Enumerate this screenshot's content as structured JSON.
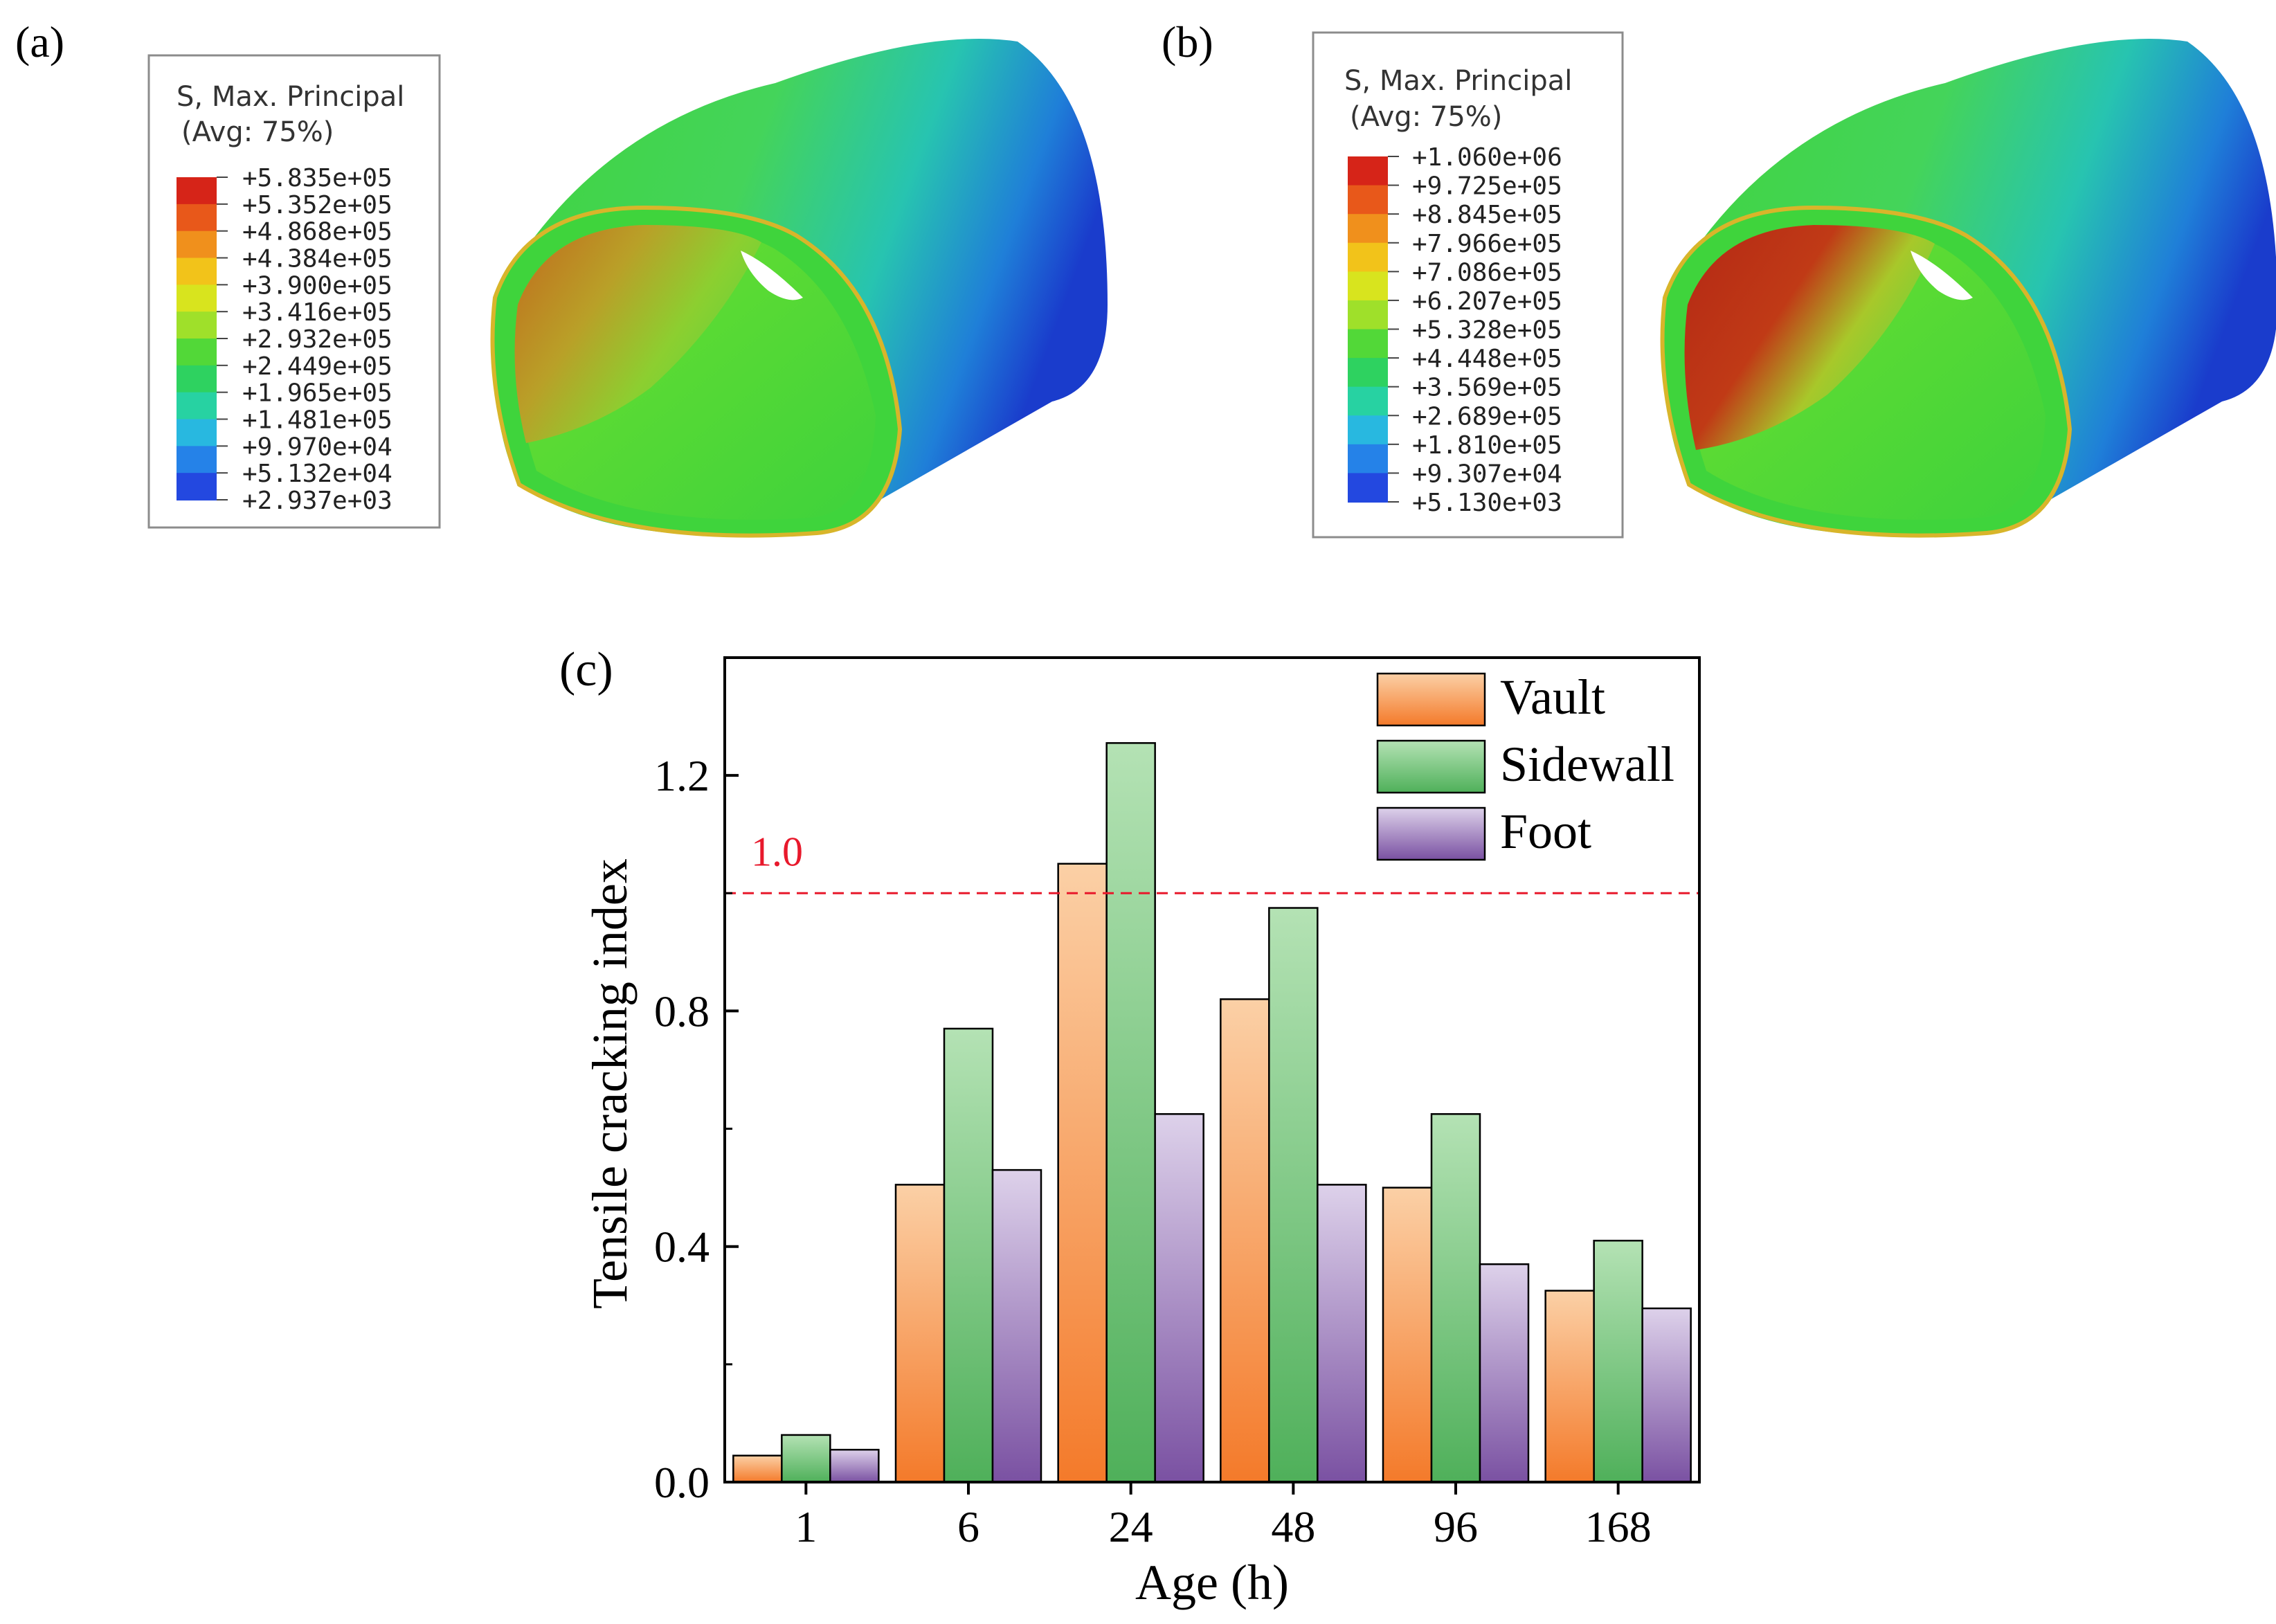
{
  "panels": {
    "a": {
      "label": "(a)",
      "legend_title_1": "S, Max. Principal",
      "legend_title_2": "(Avg: 75%)",
      "contour_values": [
        "+5.835e+05",
        "+5.352e+05",
        "+4.868e+05",
        "+4.384e+05",
        "+3.900e+05",
        "+3.416e+05",
        "+2.932e+05",
        "+2.449e+05",
        "+1.965e+05",
        "+1.481e+05",
        "+9.970e+04",
        "+5.132e+04",
        "+2.937e+03"
      ]
    },
    "b": {
      "label": "(b)",
      "legend_title_1": "S, Max. Principal",
      "legend_title_2": "(Avg: 75%)",
      "contour_values": [
        "+1.060e+06",
        "+9.725e+05",
        "+8.845e+05",
        "+7.966e+05",
        "+7.086e+05",
        "+6.207e+05",
        "+5.328e+05",
        "+4.448e+05",
        "+3.569e+05",
        "+2.689e+05",
        "+1.810e+05",
        "+9.307e+04",
        "+5.130e+03"
      ]
    },
    "c": {
      "label": "(c)"
    }
  },
  "contour_colors": [
    "#d62418",
    "#e8581a",
    "#f0901c",
    "#f2c31a",
    "#d8e41e",
    "#9fe02a",
    "#52d838",
    "#2ed260",
    "#27d2a2",
    "#28b8e0",
    "#2582e8",
    "#2348e0",
    "#1a1ad0"
  ],
  "colors": {
    "vault_light": "#fbd0a6",
    "vault_dark": "#f47a2a",
    "sidewall_light": "#b4e2b4",
    "sidewall_dark": "#4fb05a",
    "foot_light": "#ddd1ea",
    "foot_dark": "#7a51a2",
    "threshold": "#e8192c"
  },
  "chart_data": {
    "type": "bar",
    "categories": [
      "1",
      "6",
      "24",
      "48",
      "96",
      "168"
    ],
    "series": [
      {
        "name": "Vault",
        "values": [
          0.045,
          0.505,
          1.05,
          0.82,
          0.5,
          0.325
        ]
      },
      {
        "name": "Sidewall",
        "values": [
          0.08,
          0.77,
          1.255,
          0.975,
          0.625,
          0.41
        ]
      },
      {
        "name": "Foot",
        "values": [
          0.055,
          0.53,
          0.625,
          0.505,
          0.37,
          0.295
        ]
      }
    ],
    "xlabel": "Age (h)",
    "ylabel": "Tensile cracking index",
    "ylim": [
      0,
      1.4
    ],
    "yticks": [
      "0.0",
      "0.4",
      "0.8",
      "1.2"
    ],
    "threshold": {
      "value": 1.0,
      "label": "1.0"
    },
    "legend_position": "top-right"
  }
}
